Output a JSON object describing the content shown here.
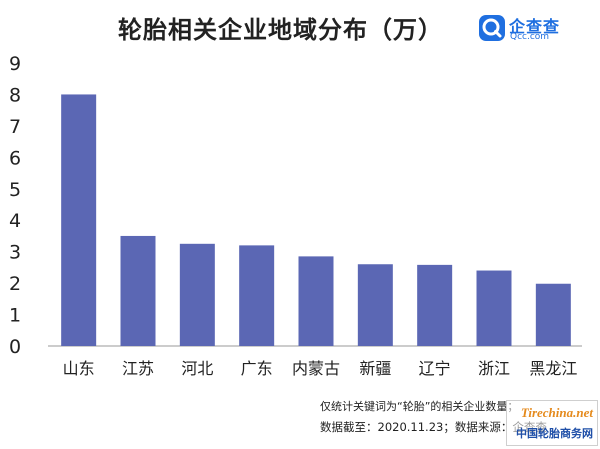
{
  "header": {
    "title": "轮胎相关企业地域分布（万）",
    "logo_cn": "企查查",
    "logo_en": "Qcc.com"
  },
  "chart_data": {
    "type": "bar",
    "title": "轮胎相关企业地域分布（万）",
    "unit": "万",
    "xlabel": "",
    "ylabel": "",
    "ylim": [
      0,
      9
    ],
    "yticks": [
      0,
      1,
      2,
      3,
      4,
      5,
      6,
      7,
      8,
      9
    ],
    "grid": false,
    "categories": [
      "山东",
      "江苏",
      "河北",
      "广东",
      "内蒙古",
      "新疆",
      "辽宁",
      "浙江",
      "黑龙江"
    ],
    "values": [
      8.0,
      3.5,
      3.25,
      3.2,
      2.85,
      2.6,
      2.58,
      2.4,
      1.98
    ],
    "bar_color": "#5b67b4"
  },
  "footer": {
    "note_line1": "仅统计关键词为“轮胎”的相关企业数量；",
    "note_line2": "数据截至：2020.11.23；数据来源：企查查"
  },
  "watermark": {
    "brand": "Tirechina.net",
    "sub": "中国轮胎商务网"
  }
}
